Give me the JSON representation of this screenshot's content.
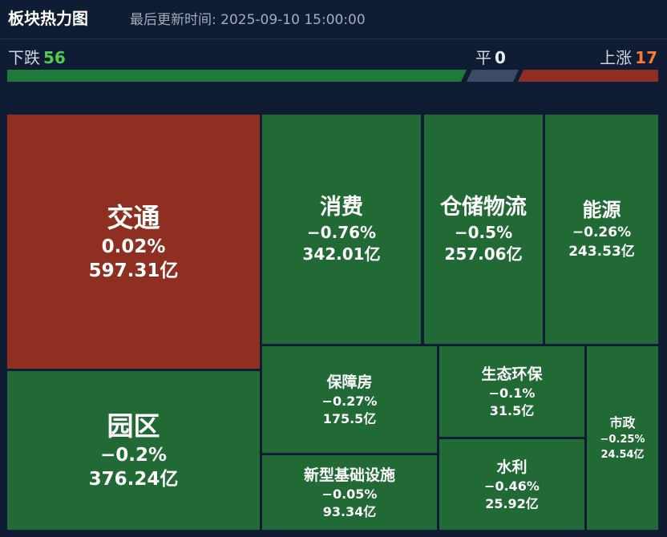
{
  "header": {
    "title": "板块热力图",
    "updated": "最后更新时间: 2025-09-10 15:00:00"
  },
  "stats": {
    "down_label": "下跌",
    "down_count": "56",
    "flat_label": "平",
    "flat_count": "0",
    "up_label": "上涨",
    "up_count": "17"
  },
  "colors": {
    "up": "#8e2f22",
    "down": "#216a36",
    "flat": "#3b4c69",
    "background": "#0f1c33"
  },
  "sectors": [
    {
      "name": "交通",
      "change": "0.02%",
      "value": "597.31亿"
    },
    {
      "name": "园区",
      "change": "−0.2%",
      "value": "376.24亿"
    },
    {
      "name": "消费",
      "change": "−0.76%",
      "value": "342.01亿"
    },
    {
      "name": "仓储物流",
      "change": "−0.5%",
      "value": "257.06亿"
    },
    {
      "name": "能源",
      "change": "−0.26%",
      "value": "243.53亿"
    },
    {
      "name": "保障房",
      "change": "−0.27%",
      "value": "175.5亿"
    },
    {
      "name": "新型基础设施",
      "change": "−0.05%",
      "value": "93.34亿"
    },
    {
      "name": "生态环保",
      "change": "−0.1%",
      "value": "31.5亿"
    },
    {
      "name": "水利",
      "change": "−0.46%",
      "value": "25.92亿"
    },
    {
      "name": "市政",
      "change": "−0.25%",
      "value": "24.54亿"
    }
  ]
}
